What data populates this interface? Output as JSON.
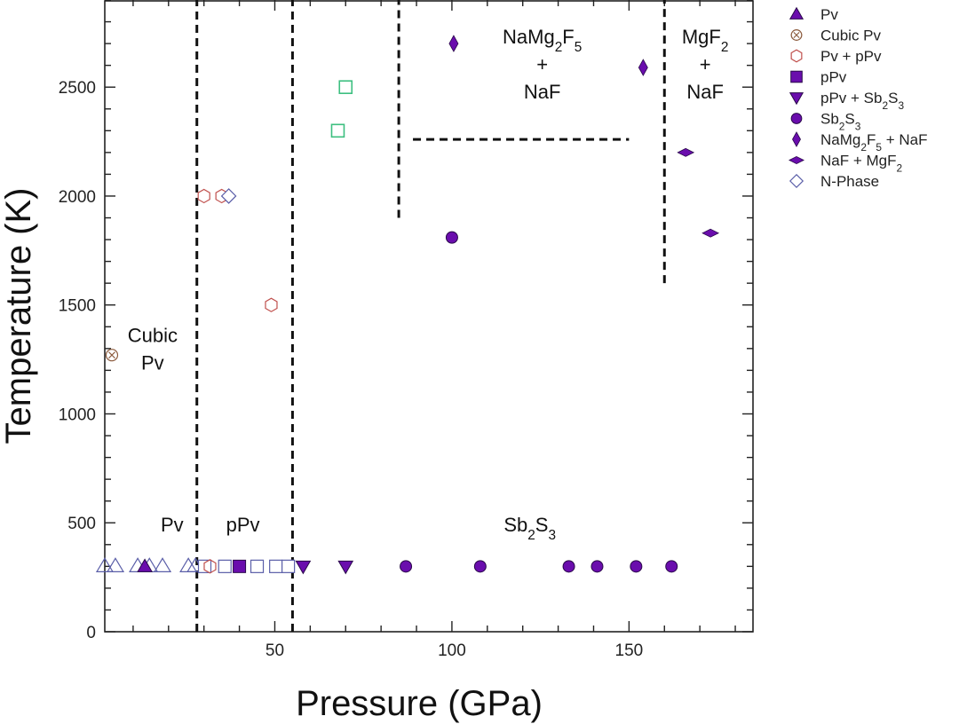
{
  "chart_data": {
    "type": "scatter",
    "title": "",
    "xlabel": "Pressure (GPa)",
    "ylabel": "Temperature (K)",
    "xlim": [
      2,
      185
    ],
    "ylim": [
      0,
      2900
    ],
    "xticks": [
      50,
      100,
      150
    ],
    "xtick_labels": [
      "50",
      "100",
      "150"
    ],
    "x_minor_step": 10,
    "yticks": [
      0,
      500,
      1000,
      1500,
      2000,
      2500
    ],
    "ytick_labels": [
      "0",
      "500",
      "1000",
      "1500",
      "2000",
      "2500"
    ],
    "y_minor_step": 100,
    "grid": false,
    "legend_position": "outside-right-top",
    "colors": {
      "purple": "#6a0dad",
      "purple_edge": "#2a0a4a",
      "open_blue": "#5a5ea8",
      "hex_red": "#c0504d",
      "cubic_brown": "#8b5a3c",
      "green": "#3dbf80",
      "black": "#111111"
    },
    "series": [
      {
        "name": "Pv",
        "marker": "triangle-up",
        "fill": "purple",
        "legend": true,
        "points": [
          [
            13.3,
            300
          ]
        ]
      },
      {
        "name": "Cubic Pv",
        "marker": "circle-x",
        "fill": "none",
        "legend": true,
        "points": [
          [
            4,
            1270
          ]
        ]
      },
      {
        "name": "Pv + pPv",
        "marker": "hexagon",
        "fill": "none",
        "legend": true,
        "points": [
          [
            30,
            2000
          ],
          [
            35,
            2000
          ],
          [
            49,
            1500
          ],
          [
            31.7,
            300
          ]
        ]
      },
      {
        "name": "pPv",
        "marker": "square",
        "fill": "purple",
        "legend": true,
        "points": [
          [
            40,
            300
          ]
        ]
      },
      {
        "name": "pPv + Sb2S3",
        "marker": "triangle-down",
        "fill": "purple",
        "legend": true,
        "points": [
          [
            58,
            300
          ],
          [
            70,
            300
          ]
        ]
      },
      {
        "name": "Sb2S3",
        "marker": "circle",
        "fill": "purple",
        "legend": true,
        "points": [
          [
            100,
            1810
          ],
          [
            87,
            300
          ],
          [
            108,
            300
          ],
          [
            133,
            300
          ],
          [
            141,
            300
          ],
          [
            152,
            300
          ],
          [
            162,
            300
          ]
        ]
      },
      {
        "name": "NaMg2F5 + NaF",
        "marker": "diamond-tall",
        "fill": "purple",
        "legend": true,
        "points": [
          [
            100.5,
            2700
          ],
          [
            154,
            2590
          ]
        ]
      },
      {
        "name": "NaF + MgF2",
        "marker": "diamond-wide",
        "fill": "purple",
        "legend": true,
        "points": [
          [
            166,
            2200
          ],
          [
            173,
            1830
          ]
        ]
      },
      {
        "name": "N-Phase",
        "marker": "diamond",
        "fill": "none",
        "legend": true,
        "points": [
          [
            37,
            2000
          ]
        ]
      },
      {
        "name": "open-triangles",
        "marker": "triangle-up-open",
        "fill": "none",
        "legend": false,
        "points": [
          [
            2,
            300
          ],
          [
            5,
            300
          ],
          [
            11.3,
            300
          ],
          [
            14.6,
            300
          ],
          [
            18.3,
            300
          ],
          [
            25.6,
            300
          ],
          [
            27.6,
            300
          ]
        ]
      },
      {
        "name": "open-squares",
        "marker": "square-open",
        "fill": "none",
        "legend": false,
        "points": [
          [
            30.2,
            300
          ],
          [
            35.9,
            300
          ],
          [
            45,
            300
          ],
          [
            50.3,
            300
          ],
          [
            53.8,
            300
          ]
        ]
      },
      {
        "name": "green-squares",
        "marker": "square-green",
        "fill": "none",
        "legend": false,
        "points": [
          [
            70,
            2500
          ],
          [
            67.8,
            2300
          ]
        ]
      }
    ],
    "boundaries": [
      {
        "name": "pv-ppv-boundary",
        "from": [
          28,
          0
        ],
        "to": [
          28,
          2900
        ]
      },
      {
        "name": "ppv-sb2s3-boundary",
        "from": [
          55,
          0
        ],
        "to": [
          55,
          2900
        ]
      },
      {
        "name": "namg2f5-left-boundary",
        "from": [
          85,
          1900
        ],
        "to": [
          85,
          2900
        ]
      },
      {
        "name": "namg2f5-bottom-boundary",
        "from": [
          89,
          2260
        ],
        "to": [
          150,
          2260
        ]
      },
      {
        "name": "mgf2-left-boundary",
        "from": [
          160,
          1600
        ],
        "to": [
          160,
          2900
        ]
      }
    ],
    "annotations": [
      {
        "name": "cubic-pv-label",
        "lines": [
          "Cubic",
          "Pv"
        ],
        "x": 15.5,
        "y": 1330
      },
      {
        "name": "pv-label",
        "lines": [
          "Pv"
        ],
        "x": 21,
        "y": 460
      },
      {
        "name": "ppv-label",
        "lines": [
          "pPv"
        ],
        "x": 41,
        "y": 460
      },
      {
        "name": "sb2s3-label",
        "lines": [
          "Sb2S3"
        ],
        "x": 122,
        "y": 460
      },
      {
        "name": "namg2f5-label",
        "lines": [
          "NaMg2F5",
          "+",
          "NaF"
        ],
        "x": 125.5,
        "y": 2700
      },
      {
        "name": "mgf2-label",
        "lines": [
          "MgF2",
          "+",
          "NaF"
        ],
        "x": 171.5,
        "y": 2700
      }
    ]
  }
}
